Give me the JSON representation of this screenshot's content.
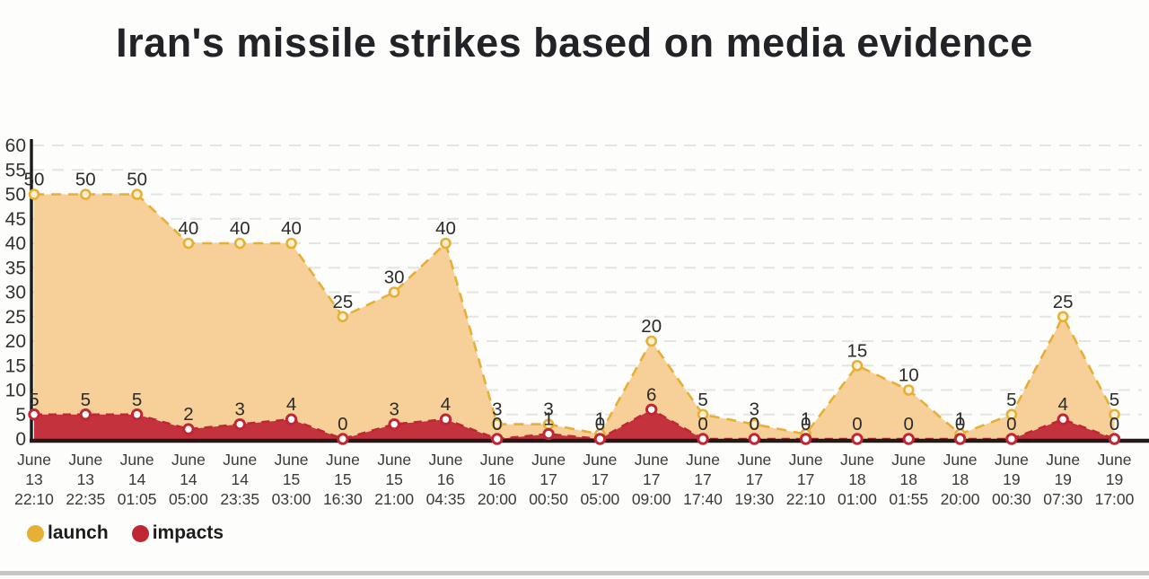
{
  "title": "Iran's missile strikes based on media evidence",
  "legend": {
    "launch_label": "launch",
    "impacts_label": "impacts"
  },
  "colors": {
    "launch_line": "#e6af35",
    "launch_fill": "#f7d099",
    "launch_marker_fill": "#fbf0d3",
    "impacts_line": "#c02734",
    "impacts_fill": "#c4323e",
    "impacts_marker_fill": "#ffffff",
    "grid": "#e4e4e1",
    "axis": "#241918",
    "yaxis": "#1a1a1a",
    "tick_text": "#333333",
    "data_label_text": "#2b2b2b",
    "x_label_text": "#3a3a3a"
  },
  "chart_data": {
    "type": "area",
    "title": "Iran's missile strikes based on media evidence",
    "xlabel": "",
    "ylabel": "",
    "ylim": [
      0,
      60
    ],
    "ytick_step": 5,
    "grid": true,
    "grid_style": "dashed",
    "legend_position": "bottom-left",
    "categories": [
      {
        "month": "June",
        "day": "13",
        "time": "22:10"
      },
      {
        "month": "June",
        "day": "13",
        "time": "22:35"
      },
      {
        "month": "June",
        "day": "14",
        "time": "01:05"
      },
      {
        "month": "June",
        "day": "14",
        "time": "05:00"
      },
      {
        "month": "June",
        "day": "14",
        "time": "23:35"
      },
      {
        "month": "June",
        "day": "15",
        "time": "03:00"
      },
      {
        "month": "June",
        "day": "15",
        "time": "16:30"
      },
      {
        "month": "June",
        "day": "15",
        "time": "21:00"
      },
      {
        "month": "June",
        "day": "16",
        "time": "04:35"
      },
      {
        "month": "June",
        "day": "16",
        "time": "20:00"
      },
      {
        "month": "June",
        "day": "17",
        "time": "00:50"
      },
      {
        "month": "June",
        "day": "17",
        "time": "05:00"
      },
      {
        "month": "June",
        "day": "17",
        "time": "09:00"
      },
      {
        "month": "June",
        "day": "17",
        "time": "17:40"
      },
      {
        "month": "June",
        "day": "17",
        "time": "19:30"
      },
      {
        "month": "June",
        "day": "17",
        "time": "22:10"
      },
      {
        "month": "June",
        "day": "18",
        "time": "01:00"
      },
      {
        "month": "June",
        "day": "18",
        "time": "01:55"
      },
      {
        "month": "June",
        "day": "18",
        "time": "20:00"
      },
      {
        "month": "June",
        "day": "19",
        "time": "00:30"
      },
      {
        "month": "June",
        "day": "19",
        "time": "07:30"
      },
      {
        "month": "June",
        "day": "19",
        "time": "17:00"
      }
    ],
    "series": [
      {
        "name": "launch",
        "values": [
          50,
          50,
          50,
          40,
          40,
          40,
          25,
          30,
          40,
          3,
          3,
          1,
          20,
          5,
          3,
          1,
          15,
          10,
          1,
          5,
          25,
          5
        ]
      },
      {
        "name": "impacts",
        "values": [
          5,
          5,
          5,
          2,
          3,
          4,
          0,
          3,
          4,
          0,
          1,
          0,
          6,
          0,
          0,
          0,
          0,
          0,
          0,
          0,
          4,
          0
        ]
      }
    ]
  }
}
